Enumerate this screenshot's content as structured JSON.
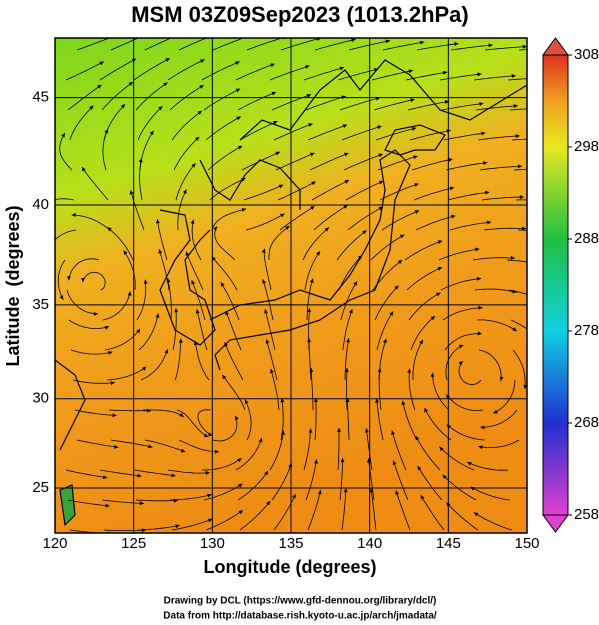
{
  "title": "MSM 03Z09Sep2023 (1013.2hPa)",
  "x_axis": {
    "label": "Longitude (degrees)",
    "lim": [
      120,
      150
    ],
    "ticks": [
      120,
      125,
      130,
      135,
      140,
      145,
      150
    ]
  },
  "y_axis": {
    "label": "Latitude  (degrees)",
    "lim": [
      22.4,
      47.6
    ],
    "ticks": [
      25,
      30,
      35,
      40,
      45
    ],
    "scale": "mercator"
  },
  "grid": true,
  "colorbar": {
    "lim": [
      258,
      308
    ],
    "ticks": [
      258,
      268,
      278,
      288,
      298,
      308
    ]
  },
  "credits": [
    "Drawing by DCL (https://www.gfd-dennou.org/library/dcl/)",
    "Data from http://database.rish.kyoto-u.ac.jp/arch/jmadata/"
  ]
}
